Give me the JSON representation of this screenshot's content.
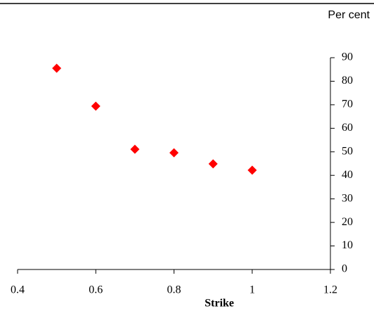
{
  "chart_data": {
    "type": "scatter",
    "y_unit_label": "Per cent",
    "x_label": "Strike",
    "x": [
      0.5,
      0.6,
      0.7,
      0.8,
      0.9,
      1.0
    ],
    "values": [
      85.5,
      69.4,
      51.1,
      49.6,
      44.9,
      42.2
    ],
    "color": "#ff0000",
    "marker": "diamond",
    "xlim": [
      0.4,
      1.2
    ],
    "xticks": [
      0.4,
      0.6,
      0.8,
      1,
      1.2
    ],
    "ylim": [
      0,
      90
    ],
    "yticks": [
      0,
      10,
      20,
      30,
      40,
      50,
      60,
      70,
      80,
      90
    ],
    "y_axis_side": "right",
    "grid": false
  }
}
